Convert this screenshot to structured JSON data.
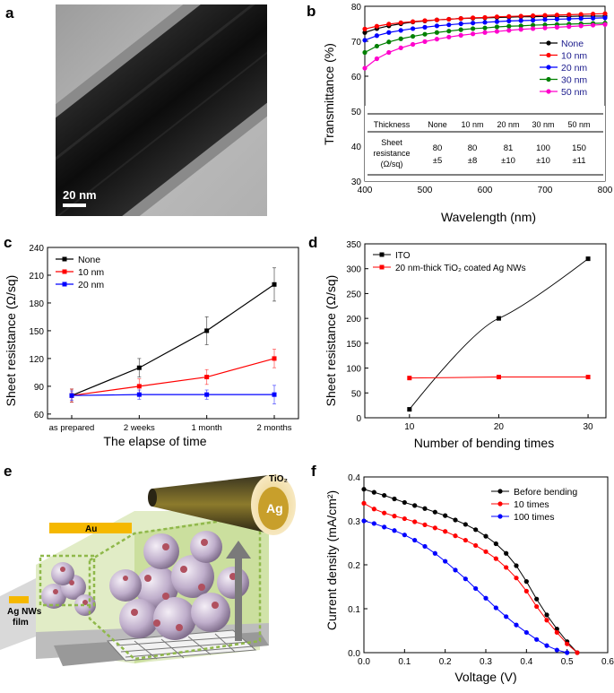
{
  "panels": {
    "a": {
      "label": "a",
      "scalebar": "20 nm"
    },
    "e": {
      "label": "e",
      "labels": {
        "au": "Au",
        "ag": "Ag",
        "tio2": "TiO₂",
        "agnws_film_1": "Ag NWs",
        "agnws_film_2": "film"
      }
    }
  },
  "colors": {
    "none": "#000000",
    "nm10": "#ff0000",
    "nm20": "#0000ff",
    "nm30": "#008000",
    "nm50": "#ff00cc",
    "gold": "#f5b800",
    "green_bg": "#cfe3a5",
    "sphere": "#cdb8d4",
    "dot": "#b0505f"
  },
  "chart_data": [
    {
      "panel": "b",
      "type": "line",
      "label": "b",
      "xlabel": "Wavelength (nm)",
      "ylabel": "Transmittance (%)",
      "xlim": [
        400,
        800
      ],
      "ylim": [
        30,
        80
      ],
      "xticks": [
        400,
        500,
        600,
        700,
        800
      ],
      "yticks": [
        30,
        40,
        50,
        60,
        70,
        80
      ],
      "x": [
        400,
        420,
        440,
        460,
        480,
        500,
        520,
        540,
        560,
        580,
        600,
        620,
        640,
        660,
        680,
        700,
        720,
        740,
        760,
        780,
        800
      ],
      "series": [
        {
          "name": "None",
          "color": "#000000",
          "values": [
            72.5,
            73.6,
            74.4,
            75.0,
            75.5,
            75.8,
            76.1,
            76.3,
            76.5,
            76.6,
            76.7,
            76.8,
            76.9,
            77.0,
            77.0,
            77.1,
            77.1,
            77.1,
            77.2,
            77.2,
            77.2
          ]
        },
        {
          "name": "10 nm",
          "color": "#ff0000",
          "values": [
            73.5,
            74.3,
            74.9,
            75.3,
            75.6,
            75.9,
            76.1,
            76.3,
            76.5,
            76.7,
            76.8,
            77.0,
            77.1,
            77.2,
            77.3,
            77.4,
            77.5,
            77.6,
            77.7,
            77.8,
            77.9
          ]
        },
        {
          "name": "20 nm",
          "color": "#0000ff",
          "values": [
            70.3,
            71.6,
            72.5,
            73.1,
            73.6,
            74.0,
            74.4,
            74.7,
            75.0,
            75.2,
            75.4,
            75.6,
            75.8,
            75.9,
            76.0,
            76.2,
            76.3,
            76.4,
            76.5,
            76.6,
            76.7
          ]
        },
        {
          "name": "30 nm",
          "color": "#008000",
          "values": [
            66.8,
            68.6,
            69.8,
            70.7,
            71.4,
            72.0,
            72.5,
            72.9,
            73.3,
            73.6,
            73.8,
            74.1,
            74.3,
            74.4,
            74.6,
            74.7,
            74.8,
            74.9,
            75.0,
            75.1,
            75.2
          ]
        },
        {
          "name": "50 nm",
          "color": "#ff00cc",
          "values": [
            62.3,
            65.0,
            66.8,
            68.1,
            69.1,
            69.9,
            70.6,
            71.2,
            71.7,
            72.1,
            72.5,
            72.8,
            73.1,
            73.4,
            73.6,
            73.8,
            74.0,
            74.2,
            74.4,
            74.6,
            74.8
          ]
        }
      ],
      "legend_position": "right",
      "table": {
        "headers": [
          "Thickness",
          "None",
          "10 nm",
          "20 nm",
          "30 nm",
          "50 nm"
        ],
        "row_label": [
          "Sheet",
          "resistance",
          "(Ω/sq)"
        ],
        "values": [
          [
            "80",
            "±5"
          ],
          [
            "80",
            "±8"
          ],
          [
            "81",
            "±10"
          ],
          [
            "100",
            "±10"
          ],
          [
            "150",
            "±11"
          ]
        ]
      }
    },
    {
      "panel": "c",
      "type": "line",
      "label": "c",
      "xlabel": "The elapse of time",
      "ylabel": "Sheet resistance (Ω/sq)",
      "categories": [
        "as prepared",
        "2 weeks",
        "1 month",
        "2 months"
      ],
      "ylim": [
        55,
        240
      ],
      "yticks": [
        60,
        90,
        120,
        150,
        180,
        210,
        240
      ],
      "series": [
        {
          "name": "None",
          "color": "#000000",
          "values": [
            80,
            110,
            150,
            200
          ],
          "errors": [
            7,
            10,
            15,
            18
          ]
        },
        {
          "name": "10 nm",
          "color": "#ff0000",
          "values": [
            80,
            90,
            100,
            120
          ],
          "errors": [
            7,
            8,
            8,
            10
          ]
        },
        {
          "name": "20 nm",
          "color": "#0000ff",
          "values": [
            80,
            81,
            81,
            81
          ],
          "errors": [
            5,
            5,
            5,
            10
          ]
        }
      ],
      "legend_position": "top-left"
    },
    {
      "panel": "d",
      "type": "line",
      "label": "d",
      "xlabel": "Number of bending times",
      "ylabel": "Sheet resistance (Ω/sq)",
      "xlim": [
        5,
        32
      ],
      "ylim": [
        0,
        350
      ],
      "xticks": [
        10,
        20,
        30
      ],
      "yticks": [
        0,
        50,
        100,
        150,
        200,
        250,
        300,
        350
      ],
      "series": [
        {
          "name": "ITO",
          "color": "#000000",
          "x": [
            10,
            20,
            30
          ],
          "values": [
            17,
            200,
            320
          ]
        },
        {
          "name": "20 nm-thick TiO₂ coated Ag NWs",
          "color": "#ff0000",
          "x": [
            10,
            20,
            30
          ],
          "values": [
            80,
            82,
            82
          ]
        }
      ],
      "legend_position": "top-left"
    },
    {
      "panel": "f",
      "type": "line",
      "label": "f",
      "xlabel": "Voltage (V)",
      "ylabel": "Current density (mA/cm²)",
      "xlim": [
        0,
        0.6
      ],
      "ylim": [
        0,
        0.4
      ],
      "xticks": [
        0.0,
        0.1,
        0.2,
        0.3,
        0.4,
        0.5,
        0.6
      ],
      "yticks": [
        0.0,
        0.1,
        0.2,
        0.3,
        0.4
      ],
      "series": [
        {
          "name": "Before bending",
          "color": "#000000",
          "x": [
            0,
            0.025,
            0.05,
            0.075,
            0.1,
            0.125,
            0.15,
            0.175,
            0.2,
            0.225,
            0.25,
            0.275,
            0.3,
            0.325,
            0.35,
            0.375,
            0.4,
            0.425,
            0.45,
            0.475,
            0.5,
            0.525
          ],
          "values": [
            0.372,
            0.365,
            0.358,
            0.35,
            0.342,
            0.335,
            0.328,
            0.32,
            0.312,
            0.302,
            0.292,
            0.28,
            0.265,
            0.248,
            0.226,
            0.198,
            0.162,
            0.122,
            0.086,
            0.054,
            0.025,
            0.0
          ]
        },
        {
          "name": "10 times",
          "color": "#ff0000",
          "x": [
            0,
            0.025,
            0.05,
            0.075,
            0.1,
            0.125,
            0.15,
            0.175,
            0.2,
            0.225,
            0.25,
            0.275,
            0.3,
            0.325,
            0.35,
            0.375,
            0.4,
            0.425,
            0.45,
            0.475,
            0.5,
            0.525
          ],
          "values": [
            0.34,
            0.327,
            0.318,
            0.311,
            0.305,
            0.298,
            0.291,
            0.284,
            0.276,
            0.266,
            0.256,
            0.244,
            0.23,
            0.214,
            0.194,
            0.17,
            0.14,
            0.105,
            0.074,
            0.046,
            0.02,
            0.0
          ]
        },
        {
          "name": "100 times",
          "color": "#0000ff",
          "x": [
            0,
            0.025,
            0.05,
            0.075,
            0.1,
            0.125,
            0.15,
            0.175,
            0.2,
            0.225,
            0.25,
            0.275,
            0.3,
            0.325,
            0.35,
            0.375,
            0.4,
            0.425,
            0.45,
            0.475,
            0.5
          ],
          "values": [
            0.3,
            0.294,
            0.286,
            0.278,
            0.268,
            0.256,
            0.242,
            0.226,
            0.208,
            0.188,
            0.168,
            0.146,
            0.124,
            0.102,
            0.082,
            0.063,
            0.046,
            0.03,
            0.016,
            0.006,
            0.0
          ]
        }
      ],
      "legend_position": "top-right"
    }
  ]
}
